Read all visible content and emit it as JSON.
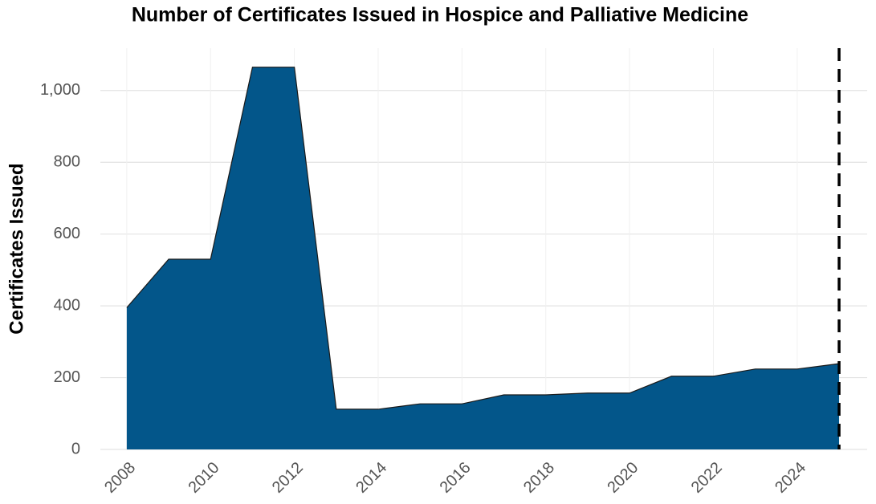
{
  "chart_data": {
    "type": "area",
    "title": "Number of Certificates Issued in Hospice and Palliative Medicine",
    "ylabel": "Certificates Issued",
    "x": [
      2008,
      2009,
      2010,
      2011,
      2012,
      2013,
      2014,
      2015,
      2016,
      2017,
      2018,
      2019,
      2020,
      2021,
      2022,
      2023,
      2024,
      2025
    ],
    "values": [
      395,
      530,
      530,
      1065,
      1065,
      112,
      112,
      127,
      127,
      152,
      152,
      157,
      157,
      204,
      204,
      224,
      224,
      239
    ],
    "color": "#03568a",
    "xlim": [
      2007.37,
      2025.67
    ],
    "ylim": [
      0,
      1118
    ],
    "xticks": [
      2008,
      2010,
      2012,
      2014,
      2016,
      2018,
      2020,
      2022,
      2024
    ],
    "yticks": [
      0,
      200,
      400,
      600,
      800,
      {
        "value": 1000,
        "label": "1,000"
      }
    ],
    "grid": true,
    "vline_x": 2025
  }
}
